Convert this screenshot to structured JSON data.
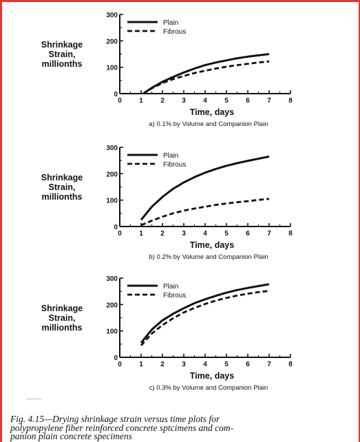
{
  "chart_data": [
    {
      "type": "line",
      "title": "a) 0.1% by Volume and Companion Plain",
      "ylabel": "Shrinkage Strain, millionths",
      "xlabel": "Time, days",
      "xlim": [
        0,
        8
      ],
      "ylim": [
        0,
        300
      ],
      "xticks": [
        "0",
        "1",
        "2",
        "3",
        "4",
        "5",
        "6",
        "7",
        "8"
      ],
      "yticks": [
        "0",
        "100",
        "200",
        "300"
      ],
      "legend_position": "top-left",
      "series": [
        {
          "name": "Plain",
          "style": "solid",
          "x": [
            1.1,
            1.5,
            2,
            2.5,
            3,
            3.5,
            4,
            4.5,
            5,
            5.5,
            6,
            6.5,
            7
          ],
          "y": [
            0,
            22,
            45,
            63,
            80,
            95,
            108,
            118,
            126,
            134,
            140,
            145,
            150
          ]
        },
        {
          "name": "Fibrous",
          "style": "dashed",
          "x": [
            1.1,
            1.5,
            2,
            2.5,
            3,
            3.5,
            4,
            4.5,
            5,
            5.5,
            6,
            6.5,
            7
          ],
          "y": [
            0,
            20,
            40,
            55,
            67,
            78,
            87,
            95,
            102,
            108,
            113,
            118,
            122
          ]
        }
      ]
    },
    {
      "type": "line",
      "title": "b) 0.2% by Volume and Companion Plain",
      "ylabel": "Shrinkage Strain, millionths",
      "xlabel": "Time, days",
      "xlim": [
        0,
        8
      ],
      "ylim": [
        0,
        300
      ],
      "xticks": [
        "0",
        "1",
        "2",
        "3",
        "4",
        "5",
        "6",
        "7",
        "8"
      ],
      "yticks": [
        "0",
        "100",
        "200",
        "300"
      ],
      "legend_position": "top-left",
      "series": [
        {
          "name": "Plain",
          "style": "solid",
          "x": [
            1,
            1.5,
            2,
            2.5,
            3,
            3.5,
            4,
            4.5,
            5,
            5.5,
            6,
            6.5,
            7
          ],
          "y": [
            25,
            75,
            112,
            143,
            167,
            187,
            204,
            218,
            230,
            240,
            249,
            257,
            265
          ]
        },
        {
          "name": "Fibrous",
          "style": "dashed",
          "x": [
            1,
            1.5,
            2,
            2.5,
            3,
            3.5,
            4,
            4.5,
            5,
            5.5,
            6,
            6.5,
            7
          ],
          "y": [
            5,
            22,
            37,
            50,
            60,
            68,
            75,
            82,
            87,
            92,
            96,
            101,
            105
          ]
        }
      ]
    },
    {
      "type": "line",
      "title": "c) 0.3% by Volume and Companion Plain",
      "ylabel": "Shrinkage Strain, millionths",
      "xlabel": "Time, days",
      "xlim": [
        0,
        8
      ],
      "ylim": [
        0,
        300
      ],
      "xticks": [
        "0",
        "1",
        "2",
        "3",
        "4",
        "5",
        "6",
        "7",
        "8"
      ],
      "yticks": [
        "0",
        "100",
        "200",
        "300"
      ],
      "legend_position": "top-left",
      "series": [
        {
          "name": "Plain",
          "style": "solid",
          "x": [
            1,
            1.5,
            2,
            2.5,
            3,
            3.5,
            4,
            4.5,
            5,
            5.5,
            6,
            6.5,
            7
          ],
          "y": [
            55,
            105,
            140,
            165,
            186,
            205,
            220,
            233,
            245,
            255,
            263,
            270,
            277
          ]
        },
        {
          "name": "Fibrous",
          "style": "dashed",
          "x": [
            1,
            1.5,
            2,
            2.5,
            3,
            3.5,
            4,
            4.5,
            5,
            5.5,
            6,
            6.5,
            7
          ],
          "y": [
            45,
            90,
            122,
            148,
            170,
            187,
            202,
            215,
            225,
            234,
            241,
            247,
            252
          ]
        }
      ]
    }
  ],
  "caption": {
    "lines": [
      "Fig. 4.15—Drying shrinkage strain versus time plots for",
      "polypropylene fiber reinforced concrete sptcimens and com-",
      "panion plain concrete specimens"
    ]
  }
}
